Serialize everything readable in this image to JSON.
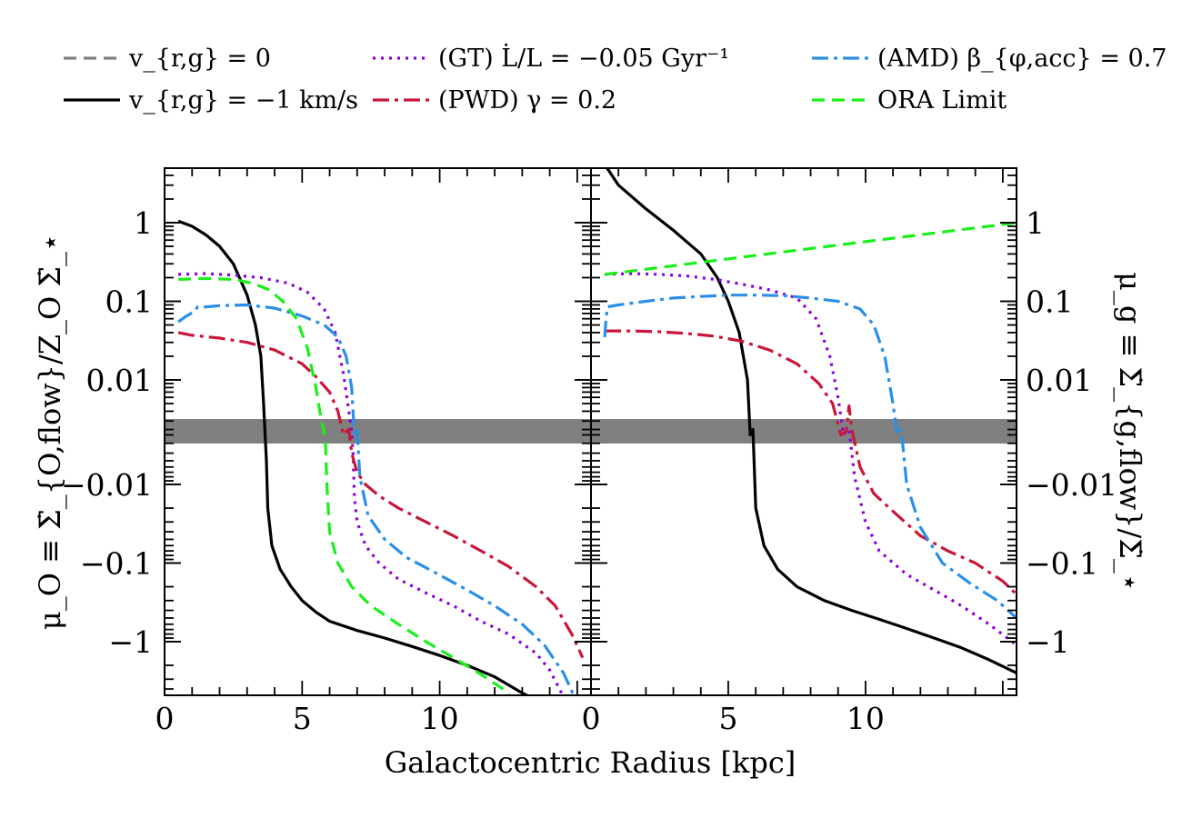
{
  "legend": [
    {
      "key": "vr0",
      "label": "v_{r,g} = 0",
      "color": "#808080",
      "dash": "14 8"
    },
    {
      "key": "gt",
      "label": "(GT) L̇/L = −0.05 Gyr⁻¹",
      "color": "#8b00d6",
      "dash": "3 6"
    },
    {
      "key": "amd",
      "label": "(AMD) β_{φ,acc} = 0.7",
      "color": "#2a8fe6",
      "dash": "18 6 4 6"
    },
    {
      "key": "vr1",
      "label": "v_{r,g} = −1 km/s",
      "color": "#000000",
      "dash": ""
    },
    {
      "key": "pwd",
      "label": "(PWD) γ = 0.2",
      "color": "#c8173a",
      "dash": "18 6 4 6"
    },
    {
      "key": "ora",
      "label": "ORA Limit",
      "color": "#19f019",
      "dash": "14 8"
    }
  ],
  "chart_data": [
    {
      "type": "line",
      "panel": "left",
      "xlabel": "Galactocentric Radius [kpc]",
      "ylabel": "μ_O ≡ Σ̇_{O,flow}/Z_O Σ̇_⋆",
      "xlim": [
        0,
        15.5
      ],
      "yscale": "symlog",
      "x_ticks": [
        "0",
        "5",
        "10"
      ],
      "y_ticks": [
        "1",
        "0.1",
        "0.01",
        "−0.01",
        "−0.1",
        "−1"
      ],
      "series": [
        {
          "key": "vr1",
          "name": "v_{r,g} = −1 km/s",
          "x": [
            0.5,
            1.0,
            1.5,
            2.0,
            2.5,
            3.0,
            3.3,
            3.5,
            3.6,
            3.65,
            3.7,
            3.75,
            3.9,
            4.2,
            4.6,
            5.0,
            5.5,
            6.0,
            7.0,
            8.0,
            9.0,
            10.0,
            11.0,
            12.0,
            13.0,
            13.7
          ],
          "y": [
            1.05,
            0.9,
            0.7,
            0.5,
            0.3,
            0.12,
            0.05,
            0.02,
            0.005,
            0,
            -0.005,
            -0.02,
            -0.06,
            -0.12,
            -0.2,
            -0.3,
            -0.42,
            -0.55,
            -0.72,
            -0.9,
            -1.15,
            -1.5,
            -2.0,
            -2.8,
            -4.5,
            -6.0
          ]
        },
        {
          "key": "gt",
          "name": "(GT) L̇/L = −0.05 Gyr⁻¹",
          "x": [
            0.5,
            1.5,
            2.5,
            3.5,
            4.5,
            5.2,
            5.8,
            6.2,
            6.5,
            6.7,
            6.8,
            6.85,
            6.9,
            7.0,
            7.3,
            7.8,
            8.5,
            9.5,
            10.5,
            11.5,
            12.5,
            13.5,
            14.0,
            14.5
          ],
          "y": [
            0.22,
            0.225,
            0.215,
            0.2,
            0.17,
            0.13,
            0.08,
            0.04,
            0.012,
            0.004,
            0,
            -0.004,
            -0.015,
            -0.03,
            -0.06,
            -0.1,
            -0.16,
            -0.24,
            -0.35,
            -0.55,
            -0.8,
            -1.4,
            -2.3,
            -5.0
          ]
        },
        {
          "key": "pwd",
          "name": "(PWD) γ = 0.2",
          "x": [
            0.5,
            1.0,
            2.0,
            3.0,
            4.0,
            5.0,
            5.5,
            6.0,
            6.3,
            6.5,
            6.6,
            6.7,
            6.8,
            7.0,
            7.3,
            7.8,
            8.5,
            9.5,
            10.5,
            11.5,
            12.5,
            13.5,
            14.2,
            14.8,
            15.2
          ],
          "y": [
            0.04,
            0.037,
            0.034,
            0.03,
            0.024,
            0.016,
            0.011,
            0.007,
            0.004,
            0.002,
            0,
            -0.002,
            -0.004,
            -0.007,
            -0.01,
            -0.014,
            -0.02,
            -0.03,
            -0.045,
            -0.07,
            -0.11,
            -0.2,
            -0.35,
            -0.8,
            -1.6
          ]
        },
        {
          "key": "amd",
          "name": "(AMD) β_{φ,acc} = 0.7",
          "x": [
            0.5,
            0.8,
            1.1,
            1.2,
            1.5,
            2.0,
            3.0,
            4.0,
            5.0,
            5.8,
            6.3,
            6.6,
            6.8,
            6.9,
            6.95,
            7.0,
            7.1,
            7.4,
            8.0,
            8.8,
            9.8,
            11.0,
            12.0,
            13.0,
            13.8,
            14.5,
            14.9
          ],
          "y": [
            0.055,
            0.065,
            0.075,
            0.085,
            0.085,
            0.088,
            0.09,
            0.082,
            0.065,
            0.05,
            0.035,
            0.02,
            0.008,
            0.002,
            0,
            -0.002,
            -0.008,
            -0.025,
            -0.05,
            -0.085,
            -0.13,
            -0.22,
            -0.35,
            -0.6,
            -1.1,
            -2.5,
            -5.0
          ]
        },
        {
          "key": "ora",
          "name": "ORA Limit",
          "x": [
            0.5,
            1.5,
            2.5,
            3.2,
            3.8,
            4.3,
            4.8,
            5.2,
            5.5,
            5.7,
            5.8,
            5.85,
            5.9,
            6.0,
            6.3,
            6.8,
            7.5,
            8.5,
            9.5,
            10.5,
            11.5,
            12.3,
            12.7
          ],
          "y": [
            0.19,
            0.195,
            0.19,
            0.17,
            0.14,
            0.1,
            0.06,
            0.025,
            0.008,
            0.003,
            0,
            -0.003,
            -0.01,
            -0.04,
            -0.1,
            -0.2,
            -0.35,
            -0.6,
            -1.0,
            -1.6,
            -2.6,
            -4.0,
            -5.5
          ]
        }
      ]
    },
    {
      "type": "line",
      "panel": "right",
      "xlabel": "Galactocentric Radius [kpc]",
      "ylabel": "μ_g ≡ Σ̇_{g,flow}/Σ̇_⋆",
      "xlim": [
        0,
        15.5
      ],
      "yscale": "symlog",
      "x_ticks": [
        "0",
        "5",
        "10"
      ],
      "y_ticks": [
        "1",
        "0.1",
        "0.01",
        "−0.01",
        "−0.1",
        "−1"
      ],
      "series": [
        {
          "key": "vr1",
          "name": "v_{r,g} = −1 km/s",
          "x": [
            0.5,
            1.0,
            2.0,
            3.0,
            4.0,
            4.6,
            5.0,
            5.4,
            5.7,
            5.8,
            5.85,
            5.9,
            6.0,
            6.3,
            6.8,
            7.5,
            8.5,
            9.5,
            10.5,
            11.5,
            12.5,
            13.5,
            14.5,
            15.5
          ],
          "y": [
            5.5,
            3.0,
            1.5,
            0.8,
            0.4,
            0.2,
            0.1,
            0.04,
            0.01,
            0.002,
            0,
            -0.002,
            -0.02,
            -0.06,
            -0.12,
            -0.2,
            -0.3,
            -0.4,
            -0.52,
            -0.68,
            -0.9,
            -1.2,
            -1.7,
            -2.5
          ]
        },
        {
          "key": "gt",
          "name": "(GT) L̇/L = −0.05 Gyr⁻¹",
          "x": [
            0.5,
            1.5,
            2.5,
            3.5,
            4.5,
            5.5,
            6.5,
            7.5,
            8.2,
            8.7,
            9.0,
            9.2,
            9.3,
            9.4,
            9.6,
            10.0,
            10.5,
            11.5,
            12.5,
            13.5,
            14.5,
            15.5
          ],
          "y": [
            0.22,
            0.225,
            0.22,
            0.21,
            0.19,
            0.165,
            0.14,
            0.11,
            0.06,
            0.02,
            0.006,
            0.002,
            0,
            -0.002,
            -0.008,
            -0.03,
            -0.07,
            -0.14,
            -0.22,
            -0.35,
            -0.6,
            -1.1
          ]
        },
        {
          "key": "pwd",
          "name": "(PWD) γ = 0.2",
          "x": [
            0.5,
            1.5,
            2.5,
            3.5,
            4.5,
            5.5,
            6.5,
            7.5,
            8.3,
            8.8,
            9.1,
            9.3,
            9.4,
            9.5,
            9.8,
            10.3,
            11.0,
            12.0,
            13.0,
            14.0,
            15.0,
            15.5
          ],
          "y": [
            0.042,
            0.042,
            0.041,
            0.039,
            0.036,
            0.031,
            0.024,
            0.016,
            0.009,
            0.005,
            0.002,
            0,
            -0.001,
            -0.002,
            -0.006,
            -0.013,
            -0.022,
            -0.045,
            -0.07,
            -0.1,
            -0.17,
            -0.25
          ]
        },
        {
          "key": "amd",
          "name": "(AMD) β_{φ,acc} = 0.7",
          "x": [
            0.5,
            0.55,
            0.6,
            1.0,
            2.0,
            3.0,
            4.0,
            5.0,
            6.0,
            7.0,
            8.0,
            9.0,
            9.8,
            10.3,
            10.7,
            11.0,
            11.15,
            11.2,
            11.3,
            11.5,
            12.0,
            12.8,
            13.8,
            14.8,
            15.5
          ],
          "y": [
            0.035,
            0.06,
            0.085,
            0.09,
            0.1,
            0.11,
            0.115,
            0.12,
            0.12,
            0.118,
            0.11,
            0.1,
            0.08,
            0.05,
            0.02,
            0.005,
            0.002,
            0,
            -0.002,
            -0.01,
            -0.035,
            -0.1,
            -0.18,
            -0.3,
            -0.5
          ]
        },
        {
          "key": "ora",
          "name": "ORA Limit",
          "x": [
            0.5,
            15.5
          ],
          "y": [
            0.22,
            1.0
          ]
        }
      ]
    }
  ]
}
